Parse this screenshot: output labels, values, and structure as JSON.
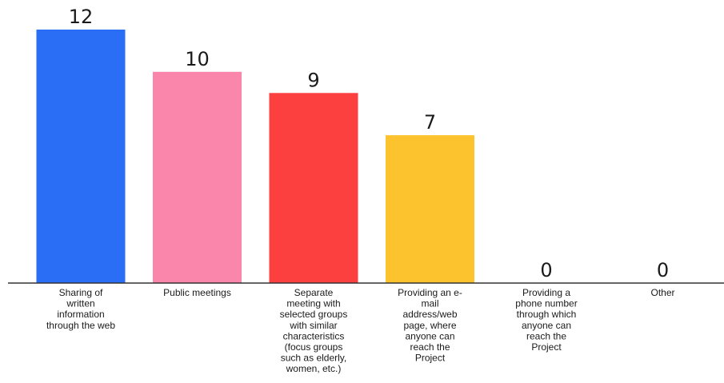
{
  "chart_data": {
    "type": "bar",
    "categories": [
      "Sharing of written information through the web",
      "Public meetings",
      "Separate meeting with selected groups with similar characteristics (focus groups such as elderly, women, etc.)",
      "Providing an e-mail address/web page, where anyone can reach the Project",
      "Providing a phone number through which anyone can reach the Project",
      "Other"
    ],
    "category_lines": [
      [
        "Sharing of",
        "written",
        "information",
        "through the web"
      ],
      [
        "Public meetings"
      ],
      [
        "Separate",
        "meeting with",
        "selected groups",
        "with similar",
        "characteristics",
        "(focus groups",
        "such as elderly,",
        "women, etc.)"
      ],
      [
        "Providing an e-",
        "mail",
        "address/web",
        "page, where",
        "anyone can",
        "reach the",
        "Project"
      ],
      [
        "Providing a",
        "phone number",
        "through which",
        "anyone can",
        "reach the",
        "Project"
      ],
      [
        "Other"
      ]
    ],
    "values": [
      12,
      10,
      9,
      7,
      0,
      0
    ],
    "data_labels": [
      "12",
      "10",
      "9",
      "7",
      "0",
      "0"
    ],
    "colors": [
      "#2a6ef5",
      "#fb86ab",
      "#fc3f3f",
      "#fdc32f",
      "#cccccc",
      "#cccccc"
    ],
    "ylim": [
      0,
      12
    ],
    "grid": false,
    "legend": "none",
    "title": "",
    "xlabel": "",
    "ylabel": ""
  }
}
